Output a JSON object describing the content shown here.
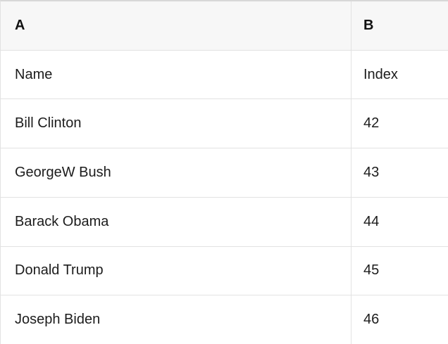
{
  "table": {
    "column_headers": [
      "A",
      "B"
    ],
    "rows": [
      {
        "cells": [
          "Name",
          "Index"
        ]
      },
      {
        "cells": [
          "Bill Clinton",
          "42"
        ]
      },
      {
        "cells": [
          "GeorgeW Bush",
          "43"
        ]
      },
      {
        "cells": [
          "Barack Obama",
          "44"
        ]
      },
      {
        "cells": [
          "Donald Trump",
          "45"
        ]
      },
      {
        "cells": [
          "Joseph Biden",
          "46"
        ]
      }
    ]
  },
  "colors": {
    "header_bg": "#f7f7f7",
    "row_bg": "#ffffff",
    "border": "#e2e2e2",
    "border_top": "#d8d8d8",
    "text": "#1c1c1c",
    "header_text": "#111111"
  }
}
